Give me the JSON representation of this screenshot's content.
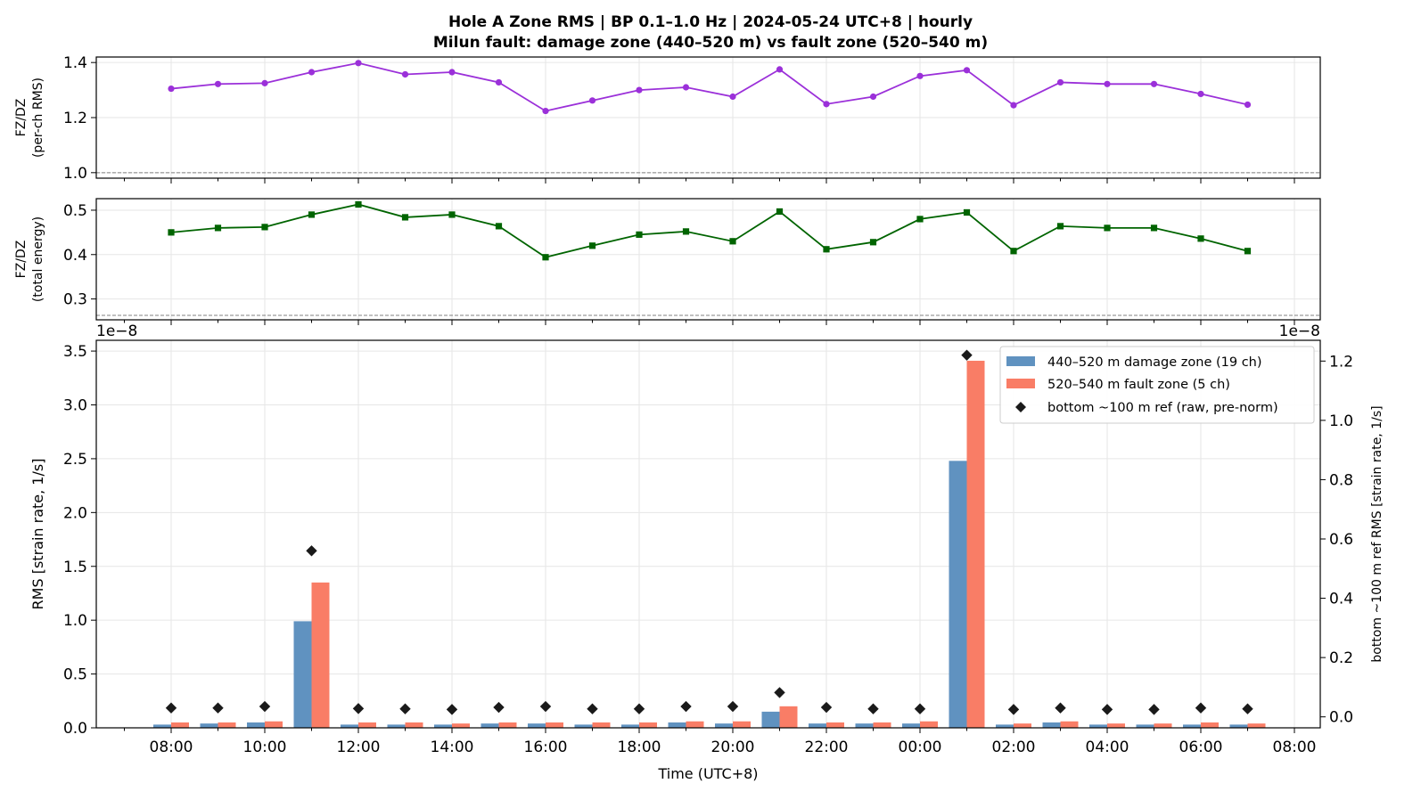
{
  "figure": {
    "title_line1": "Hole A Zone RMS  |  BP 0.1–1.0 Hz  |  2024-05-24 UTC+8  |  hourly",
    "title_line2": "Milun fault: damage zone (440–520 m) vs fault zone (520–540 m)"
  },
  "chart_data": [
    {
      "type": "line",
      "panel": "ratio-rms",
      "ylabel_line1": "FZ/DZ",
      "ylabel_line2": "(per-ch RMS)",
      "ylim": [
        0.98,
        1.42
      ],
      "yticks": [
        1.0,
        1.2,
        1.4
      ],
      "ytick_labels": [
        "1.0",
        "1.2",
        "1.4"
      ],
      "reference_line": 1.0,
      "color": "#9b30d9",
      "marker": "circle",
      "grid": true,
      "x": [
        "08:00",
        "09:00",
        "10:00",
        "11:00",
        "12:00",
        "13:00",
        "14:00",
        "15:00",
        "16:00",
        "17:00",
        "18:00",
        "19:00",
        "20:00",
        "21:00",
        "22:00",
        "23:00",
        "00:00",
        "01:00",
        "02:00",
        "03:00",
        "04:00",
        "05:00",
        "06:00",
        "07:00"
      ],
      "values": [
        1.305,
        1.322,
        1.325,
        1.365,
        1.398,
        1.357,
        1.365,
        1.328,
        1.224,
        1.262,
        1.3,
        1.31,
        1.276,
        1.375,
        1.249,
        1.276,
        1.351,
        1.372,
        1.245,
        1.328,
        1.322,
        1.322,
        1.286,
        1.247
      ]
    },
    {
      "type": "line",
      "panel": "ratio-energy",
      "ylabel_line1": "FZ/DZ",
      "ylabel_line2": "(total energy)",
      "ylim": [
        0.253,
        0.526
      ],
      "yticks": [
        0.3,
        0.4,
        0.5
      ],
      "ytick_labels": [
        "0.3",
        "0.4",
        "0.5"
      ],
      "reference_line": 0.263,
      "color": "#006400",
      "marker": "square",
      "grid": true,
      "x": [
        "08:00",
        "09:00",
        "10:00",
        "11:00",
        "12:00",
        "13:00",
        "14:00",
        "15:00",
        "16:00",
        "17:00",
        "18:00",
        "19:00",
        "20:00",
        "21:00",
        "22:00",
        "23:00",
        "00:00",
        "01:00",
        "02:00",
        "03:00",
        "04:00",
        "05:00",
        "06:00",
        "07:00"
      ],
      "values": [
        0.45,
        0.46,
        0.462,
        0.49,
        0.513,
        0.484,
        0.49,
        0.464,
        0.394,
        0.42,
        0.445,
        0.452,
        0.43,
        0.497,
        0.412,
        0.428,
        0.48,
        0.495,
        0.408,
        0.464,
        0.46,
        0.46,
        0.436,
        0.408
      ]
    },
    {
      "type": "bar",
      "panel": "zone-rms",
      "xlabel": "Time (UTC+8)",
      "ylabel": "RMS  [strain rate, 1/s]",
      "ylabel_right": "bottom ~100 m ref RMS  [strain rate, 1/s]",
      "offset_left": "1e−8",
      "offset_right": "1e−8",
      "ylim": [
        0,
        3.6
      ],
      "yticks": [
        0.0,
        0.5,
        1.0,
        1.5,
        2.0,
        2.5,
        3.0,
        3.5
      ],
      "ytick_labels": [
        "0.0",
        "0.5",
        "1.0",
        "1.5",
        "2.0",
        "2.5",
        "3.0",
        "3.5"
      ],
      "ylim_right": [
        -0.037,
        1.27
      ],
      "yticks_right": [
        0.0,
        0.2,
        0.4,
        0.6,
        0.8,
        1.0,
        1.2
      ],
      "ytick_labels_right": [
        "0.0",
        "0.2",
        "0.4",
        "0.6",
        "0.8",
        "1.0",
        "1.2"
      ],
      "xtick_labels": [
        "08:00",
        "10:00",
        "12:00",
        "14:00",
        "16:00",
        "18:00",
        "20:00",
        "22:00",
        "00:00",
        "02:00",
        "04:00",
        "06:00",
        "08:00"
      ],
      "grid": true,
      "legend_position": "top-right",
      "categories": [
        "08:00",
        "09:00",
        "10:00",
        "11:00",
        "12:00",
        "13:00",
        "14:00",
        "15:00",
        "16:00",
        "17:00",
        "18:00",
        "19:00",
        "20:00",
        "21:00",
        "22:00",
        "23:00",
        "00:00",
        "01:00",
        "02:00",
        "03:00",
        "04:00",
        "05:00",
        "06:00",
        "07:00"
      ],
      "series": [
        {
          "name": "440–520 m  damage zone (19 ch)",
          "kind": "bar",
          "axis": "left",
          "color": "#6092c0",
          "values": [
            0.03,
            0.04,
            0.05,
            0.99,
            0.03,
            0.03,
            0.03,
            0.04,
            0.04,
            0.03,
            0.03,
            0.05,
            0.04,
            0.15,
            0.04,
            0.04,
            0.04,
            2.48,
            0.03,
            0.05,
            0.03,
            0.03,
            0.03,
            0.03
          ]
        },
        {
          "name": "520–540 m  fault zone (5 ch)",
          "kind": "bar",
          "axis": "left",
          "color": "#f97d66",
          "values": [
            0.05,
            0.05,
            0.06,
            1.35,
            0.05,
            0.05,
            0.04,
            0.05,
            0.05,
            0.05,
            0.05,
            0.06,
            0.06,
            0.2,
            0.05,
            0.05,
            0.06,
            3.41,
            0.04,
            0.06,
            0.04,
            0.04,
            0.05,
            0.04
          ]
        },
        {
          "name": "bottom ~100 m ref (raw, pre-norm)",
          "kind": "scatter",
          "axis": "right",
          "color": "#1a1a1a",
          "marker": "diamond",
          "values": [
            0.03,
            0.03,
            0.035,
            0.56,
            0.028,
            0.027,
            0.025,
            0.032,
            0.035,
            0.027,
            0.027,
            0.035,
            0.035,
            0.082,
            0.032,
            0.027,
            0.027,
            1.22,
            0.025,
            0.03,
            0.025,
            0.025,
            0.03,
            0.027
          ]
        }
      ]
    }
  ]
}
